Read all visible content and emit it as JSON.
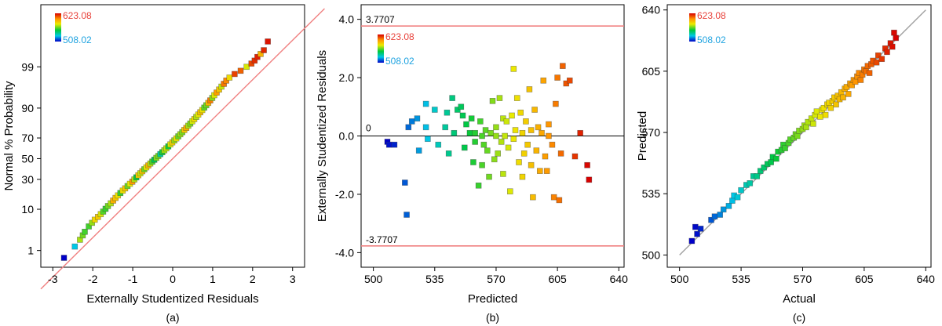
{
  "colorbar": {
    "max_label": "623.08",
    "min_label": "508.02",
    "max_color": "#e8413a",
    "min_color": "#1fa3e0"
  },
  "chart_data": [
    {
      "type": "scatter",
      "panel_label": "(a)",
      "xlabel": "Externally Studentized Residuals",
      "ylabel": "Normal % Probability",
      "xlim": [
        -3.3,
        3.3
      ],
      "x_ticks": [
        -3,
        -2,
        -1,
        0,
        1,
        2,
        3
      ],
      "y_ticks": [
        1,
        10,
        30,
        50,
        70,
        90,
        99
      ],
      "y_scale": "normal probability",
      "ref_line": {
        "kind": "normal fit",
        "color": "#f08080"
      },
      "color_scale": {
        "min": 508.02,
        "max": 623.08
      },
      "points": {
        "x": [
          -2.72,
          -2.45,
          -2.32,
          -2.25,
          -2.2,
          -2.1,
          -2.02,
          -1.95,
          -1.87,
          -1.8,
          -1.74,
          -1.68,
          -1.62,
          -1.55,
          -1.49,
          -1.43,
          -1.37,
          -1.31,
          -1.25,
          -1.19,
          -1.13,
          -1.07,
          -1.01,
          -0.96,
          -0.91,
          -0.86,
          -0.81,
          -0.76,
          -0.71,
          -0.66,
          -0.61,
          -0.56,
          -0.51,
          -0.46,
          -0.41,
          -0.36,
          -0.31,
          -0.26,
          -0.21,
          -0.16,
          -0.11,
          -0.06,
          -0.01,
          0.04,
          0.09,
          0.14,
          0.19,
          0.24,
          0.29,
          0.34,
          0.39,
          0.44,
          0.49,
          0.54,
          0.59,
          0.64,
          0.69,
          0.74,
          0.79,
          0.84,
          0.89,
          0.94,
          0.99,
          1.04,
          1.1,
          1.16,
          1.22,
          1.28,
          1.34,
          1.42,
          1.55,
          1.7,
          1.85,
          1.97,
          2.05,
          2.12,
          2.2,
          2.28,
          2.38
        ],
        "prob": [
          0.6,
          1.3,
          2.0,
          2.6,
          3.2,
          4.3,
          5.2,
          6.1,
          7.0,
          8.0,
          9.0,
          10.2,
          11.5,
          12.9,
          14.4,
          16.0,
          17.6,
          19.2,
          20.9,
          22.6,
          24.4,
          26.2,
          28.0,
          29.9,
          31.8,
          33.7,
          35.6,
          37.5,
          39.4,
          41.3,
          43.2,
          45.1,
          47.0,
          48.9,
          50.8,
          52.7,
          54.6,
          56.5,
          58.4,
          60.3,
          62.2,
          64.1,
          66.0,
          67.8,
          69.6,
          71.4,
          73.2,
          74.9,
          76.6,
          78.2,
          79.8,
          81.3,
          82.8,
          84.2,
          85.5,
          86.8,
          88.0,
          89.1,
          90.2,
          91.2,
          92.1,
          93.0,
          93.8,
          94.6,
          95.3,
          96.0,
          96.6,
          97.1,
          97.6,
          98.0,
          98.4,
          98.7,
          99.0,
          99.2,
          99.35,
          99.5,
          99.6,
          99.7,
          99.85
        ],
        "color_value": [
          508,
          531,
          572,
          566,
          561,
          561,
          570,
          584,
          588,
          577,
          563,
          560,
          566,
          573,
          594,
          589,
          581,
          560,
          583,
          588,
          566,
          579,
          599,
          573,
          555,
          588,
          575,
          589,
          566,
          579,
          593,
          573,
          562,
          551,
          568,
          566,
          541,
          557,
          571,
          575,
          556,
          578,
          586,
          570,
          580,
          565,
          571,
          567,
          588,
          595,
          572,
          567,
          577,
          583,
          573,
          580,
          590,
          581,
          564,
          566,
          592,
          604,
          569,
          578,
          598,
          588,
          575,
          605,
          602,
          583,
          613,
          608,
          577,
          612,
          616,
          618,
          593,
          617,
          620
        ]
      }
    },
    {
      "type": "scatter",
      "panel_label": "(b)",
      "xlabel": "Predicted",
      "ylabel": "Externally Studentized Residuals",
      "xlim": [
        493,
        643
      ],
      "ylim": [
        -4.5,
        4.5
      ],
      "x_ticks": [
        500,
        535,
        570,
        605,
        640
      ],
      "y_ticks": [
        -4.0,
        -2.0,
        0.0,
        2.0,
        4.0
      ],
      "y_tick_labels": [
        "-4.0",
        "-2.0",
        "0.0",
        "2.0",
        "4.0"
      ],
      "limits": {
        "upper": 3.7707,
        "lower": -3.7707,
        "upper_label": "3.7707",
        "lower_label": "-3.7707",
        "color": "#f08080"
      },
      "zero_line": {
        "value": 0,
        "label": "0"
      },
      "color_scale": {
        "min": 508.02,
        "max": 623.08
      },
      "points": {
        "x": [
          508,
          509,
          512,
          518,
          519,
          520,
          522,
          525,
          526,
          530,
          530,
          531,
          535,
          537,
          541,
          542,
          543,
          545,
          546,
          548,
          550,
          551,
          552,
          553,
          555,
          556,
          557,
          558,
          558,
          560,
          561,
          562,
          562,
          563,
          564,
          565,
          566,
          567,
          568,
          569,
          570,
          570,
          571,
          572,
          573,
          574,
          574,
          575,
          576,
          577,
          578,
          579,
          580,
          580,
          581,
          582,
          583,
          584,
          585,
          585,
          586,
          587,
          588,
          589,
          590,
          590,
          591,
          592,
          593,
          594,
          595,
          596,
          597,
          598,
          599,
          600,
          600,
          602,
          603,
          604,
          605,
          606,
          607,
          608,
          610,
          612,
          615,
          618,
          622,
          623
        ],
        "y": [
          -0.2,
          -0.3,
          -0.3,
          -1.6,
          -2.7,
          0.3,
          0.5,
          0.6,
          -0.5,
          1.1,
          0.3,
          -0.1,
          0.9,
          -0.3,
          0.3,
          0.8,
          -0.6,
          1.3,
          0.1,
          0.9,
          1.0,
          0.7,
          -0.4,
          0.4,
          0.1,
          0.6,
          -0.9,
          -0.2,
          0.1,
          -1.7,
          0.5,
          0.0,
          -1.0,
          -0.3,
          0.2,
          -0.5,
          -1.4,
          0.1,
          1.2,
          -0.8,
          0.0,
          0.3,
          -0.6,
          1.3,
          -0.2,
          0.6,
          -1.3,
          0.0,
          0.5,
          -0.4,
          -1.9,
          0.7,
          2.3,
          -0.1,
          0.2,
          1.3,
          -0.9,
          0.8,
          -1.4,
          0.1,
          -0.6,
          0.5,
          -0.3,
          1.6,
          -1.0,
          0.2,
          -2.1,
          0.9,
          -0.5,
          0.3,
          -1.2,
          0.1,
          1.9,
          -0.7,
          -1.2,
          0.4,
          0.0,
          -0.3,
          -2.1,
          1.1,
          2.0,
          -2.2,
          -0.6,
          2.4,
          1.8,
          1.9,
          -0.7,
          0.1,
          -1.0,
          -1.5
        ],
        "color_value": [
          508,
          510,
          512,
          518,
          519,
          520,
          522,
          525,
          526,
          530,
          530,
          531,
          535,
          537,
          541,
          542,
          543,
          545,
          546,
          548,
          550,
          551,
          552,
          553,
          555,
          556,
          557,
          558,
          558,
          560,
          561,
          562,
          562,
          563,
          564,
          565,
          566,
          567,
          568,
          569,
          570,
          570,
          571,
          572,
          573,
          574,
          574,
          575,
          576,
          577,
          578,
          579,
          580,
          580,
          581,
          582,
          583,
          584,
          585,
          585,
          586,
          587,
          588,
          589,
          590,
          590,
          591,
          592,
          593,
          594,
          595,
          596,
          597,
          598,
          599,
          600,
          600,
          602,
          603,
          604,
          605,
          606,
          607,
          608,
          610,
          612,
          615,
          618,
          622,
          623
        ]
      }
    },
    {
      "type": "scatter",
      "panel_label": "(c)",
      "xlabel": "Actual",
      "ylabel": "Predicted",
      "xlim": [
        493,
        643
      ],
      "ylim": [
        493,
        643
      ],
      "x_ticks": [
        500,
        535,
        570,
        605,
        640
      ],
      "y_ticks": [
        500,
        535,
        570,
        605,
        640
      ],
      "ref_line": {
        "from": [
          500,
          500
        ],
        "to": [
          640,
          640
        ],
        "color": "#a0a0a0"
      },
      "color_scale": {
        "min": 508.02,
        "max": 623.08
      },
      "points": {
        "x": [
          507,
          509,
          510,
          512,
          518,
          520,
          523,
          525,
          528,
          530,
          531,
          533,
          535,
          538,
          540,
          542,
          544,
          546,
          548,
          550,
          552,
          553,
          555,
          556,
          558,
          559,
          560,
          562,
          563,
          565,
          566,
          567,
          568,
          570,
          571,
          572,
          573,
          575,
          576,
          577,
          578,
          580,
          581,
          582,
          583,
          584,
          585,
          586,
          587,
          588,
          589,
          590,
          591,
          592,
          593,
          594,
          595,
          596,
          597,
          598,
          599,
          600,
          601,
          602,
          603,
          604,
          605,
          606,
          607,
          608,
          609,
          610,
          612,
          613,
          615,
          617,
          618,
          620,
          621,
          622,
          623
        ],
        "y": [
          508,
          516,
          512,
          515,
          520,
          522,
          523,
          526,
          528,
          531,
          534,
          533,
          537,
          540,
          541,
          545,
          545,
          548,
          550,
          552,
          553,
          556,
          555,
          559,
          560,
          563,
          561,
          564,
          566,
          567,
          569,
          568,
          571,
          572,
          574,
          573,
          576,
          578,
          575,
          580,
          582,
          579,
          583,
          584,
          580,
          586,
          587,
          584,
          588,
          590,
          586,
          591,
          589,
          593,
          590,
          595,
          596,
          592,
          598,
          597,
          600,
          599,
          602,
          604,
          600,
          603,
          606,
          605,
          608,
          604,
          609,
          611,
          610,
          614,
          612,
          618,
          616,
          621,
          619,
          627,
          624
        ],
        "color_value": [
          508,
          509,
          510,
          512,
          518,
          520,
          523,
          525,
          528,
          530,
          531,
          533,
          535,
          538,
          540,
          542,
          544,
          546,
          548,
          550,
          552,
          553,
          555,
          556,
          558,
          559,
          560,
          562,
          563,
          565,
          566,
          567,
          568,
          570,
          571,
          572,
          573,
          575,
          576,
          577,
          578,
          580,
          581,
          582,
          583,
          584,
          585,
          586,
          587,
          588,
          589,
          590,
          591,
          592,
          593,
          594,
          595,
          596,
          597,
          598,
          599,
          600,
          601,
          602,
          603,
          604,
          605,
          606,
          607,
          608,
          609,
          610,
          612,
          613,
          615,
          617,
          618,
          620,
          621,
          622,
          623
        ]
      }
    }
  ]
}
